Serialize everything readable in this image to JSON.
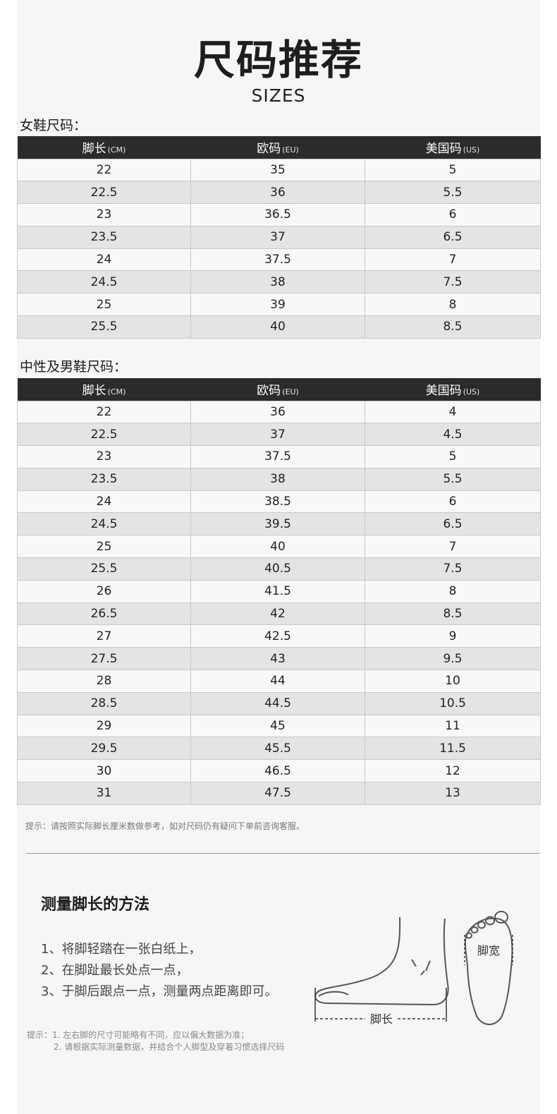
{
  "header": {
    "title": "尺码推荐",
    "subtitle": "SIZES"
  },
  "women": {
    "label": "女鞋尺码：",
    "columns": [
      {
        "name": "脚长",
        "unit": "(CM)"
      },
      {
        "name": "欧码",
        "unit": "(EU)"
      },
      {
        "name": "美国码",
        "unit": "(US)"
      }
    ],
    "rows": [
      [
        "22",
        "35",
        "5"
      ],
      [
        "22.5",
        "36",
        "5.5"
      ],
      [
        "23",
        "36.5",
        "6"
      ],
      [
        "23.5",
        "37",
        "6.5"
      ],
      [
        "24",
        "37.5",
        "7"
      ],
      [
        "24.5",
        "38",
        "7.5"
      ],
      [
        "25",
        "39",
        "8"
      ],
      [
        "25.5",
        "40",
        "8.5"
      ]
    ]
  },
  "men": {
    "label": "中性及男鞋尺码：",
    "columns": [
      {
        "name": "脚长",
        "unit": "(CM)"
      },
      {
        "name": "欧码",
        "unit": "(EU)"
      },
      {
        "name": "美国码",
        "unit": "(US)"
      }
    ],
    "rows": [
      [
        "22",
        "36",
        "4"
      ],
      [
        "22.5",
        "37",
        "4.5"
      ],
      [
        "23",
        "37.5",
        "5"
      ],
      [
        "23.5",
        "38",
        "5.5"
      ],
      [
        "24",
        "38.5",
        "6"
      ],
      [
        "24.5",
        "39.5",
        "6.5"
      ],
      [
        "25",
        "40",
        "7"
      ],
      [
        "25.5",
        "40.5",
        "7.5"
      ],
      [
        "26",
        "41.5",
        "8"
      ],
      [
        "26.5",
        "42",
        "8.5"
      ],
      [
        "27",
        "42.5",
        "9"
      ],
      [
        "27.5",
        "43",
        "9.5"
      ],
      [
        "28",
        "44",
        "10"
      ],
      [
        "28.5",
        "44.5",
        "10.5"
      ],
      [
        "29",
        "45",
        "11"
      ],
      [
        "29.5",
        "45.5",
        "11.5"
      ],
      [
        "30",
        "46.5",
        "12"
      ],
      [
        "31",
        "47.5",
        "13"
      ]
    ]
  },
  "tip": "提示：请按照实际脚长厘米数做参考，如对尺码仍有疑问下单前咨询客服。",
  "howto": {
    "title": "测量脚长的方法",
    "steps": [
      "1、将脚轻踏在一张白纸上，",
      "2、在脚趾最长处点一点，",
      "3、于脚后跟点一点，测量两点距离即可。"
    ],
    "note_line1": "提示：1. 左右脚的尺寸可能略有不同，应以偏大数据为准；",
    "note_line2": "2. 请根据实际测量数据，并结合个人脚型及穿着习惯选择尺码",
    "diagram": {
      "length_label": "脚长",
      "width_label": "脚宽"
    }
  }
}
